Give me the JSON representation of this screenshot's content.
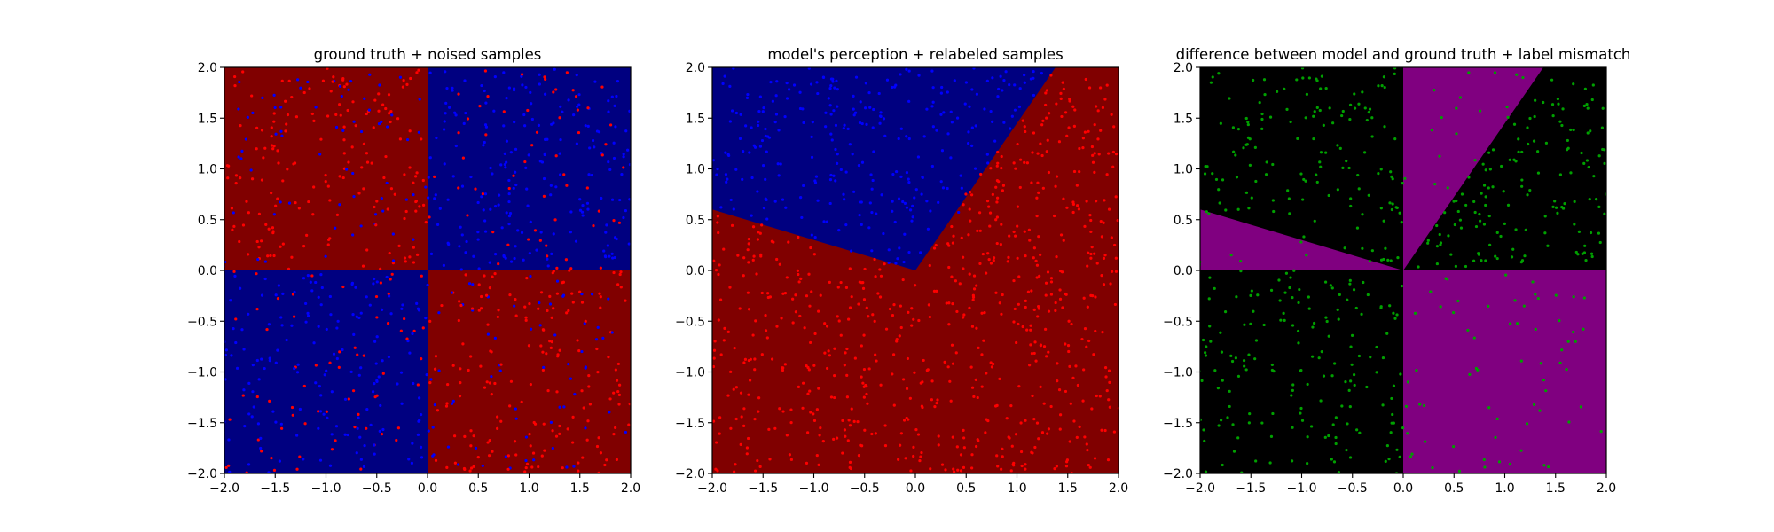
{
  "chart_data": [
    {
      "type": "scatter",
      "title": "ground truth + noised samples",
      "xlabel": "",
      "ylabel": "",
      "xlim": [
        -2.0,
        2.0
      ],
      "ylim": [
        -2.0,
        2.0
      ],
      "xticks": [
        "−2.0",
        "−1.5",
        "−1.0",
        "−0.5",
        "0.0",
        "0.5",
        "1.0",
        "1.5",
        "2.0"
      ],
      "yticks": [
        "−2.0",
        "−1.5",
        "−1.0",
        "−0.5",
        "0.0",
        "0.5",
        "1.0",
        "1.5",
        "2.0"
      ],
      "grid": false,
      "background": {
        "kind": "quadrants",
        "regions": [
          {
            "quadrant": "x<0,y>0",
            "color": "#800000"
          },
          {
            "quadrant": "x>0,y>0",
            "color": "#000080"
          },
          {
            "quadrant": "x<0,y<0",
            "color": "#000080"
          },
          {
            "quadrant": "x>0,y<0",
            "color": "#800000"
          }
        ]
      },
      "series": [
        {
          "color": "#ff0000",
          "points_description": "noisy samples labeled red"
        },
        {
          "color": "#0000ff",
          "points_description": "noisy samples labeled blue"
        }
      ],
      "sample_count": 1000,
      "point_color_a": "#ff0000",
      "point_color_b": "#0000ff"
    },
    {
      "type": "scatter",
      "title": "model's perception + relabeled samples",
      "xlabel": "",
      "ylabel": "",
      "xlim": [
        -2.0,
        2.0
      ],
      "ylim": [
        -2.0,
        2.0
      ],
      "xticks": [
        "−2.0",
        "−1.5",
        "−1.0",
        "−0.5",
        "0.0",
        "0.5",
        "1.0",
        "1.5",
        "2.0"
      ],
      "yticks": [
        "−2.0",
        "−1.5",
        "−1.0",
        "−0.5",
        "0.0",
        "0.5",
        "1.0",
        "1.5",
        "2.0"
      ],
      "grid": false,
      "background": {
        "kind": "wedge",
        "boundary_left": {
          "from": [
            0.0,
            0.0
          ],
          "to": [
            -2.0,
            0.6
          ]
        },
        "boundary_right": {
          "from": [
            0.0,
            0.0
          ],
          "to": [
            1.38,
            2.0
          ]
        },
        "inside_color": "#000080",
        "outside_color": "#800000"
      },
      "series": [
        {
          "color": "#ff0000"
        },
        {
          "color": "#0000ff"
        }
      ],
      "sample_count": 1000,
      "point_color_a": "#ff0000",
      "point_color_b": "#0000ff"
    },
    {
      "type": "scatter",
      "title": "difference between model and ground truth + label mismatch",
      "xlabel": "",
      "ylabel": "",
      "xlim": [
        -2.0,
        2.0
      ],
      "ylim": [
        -2.0,
        2.0
      ],
      "xticks": [
        "−2.0",
        "−1.5",
        "−1.0",
        "−0.5",
        "0.0",
        "0.5",
        "1.0",
        "1.5",
        "2.0"
      ],
      "yticks": [
        "−2.0",
        "−1.5",
        "−1.0",
        "−0.5",
        "0.0",
        "0.5",
        "1.0",
        "1.5",
        "2.0"
      ],
      "grid": false,
      "background": {
        "kind": "difference",
        "match_color": "#000000",
        "mismatch_color": "#800080"
      },
      "series": [
        {
          "color": "#00a000"
        }
      ],
      "sample_count": 430,
      "point_color_a": "#00a000"
    }
  ]
}
